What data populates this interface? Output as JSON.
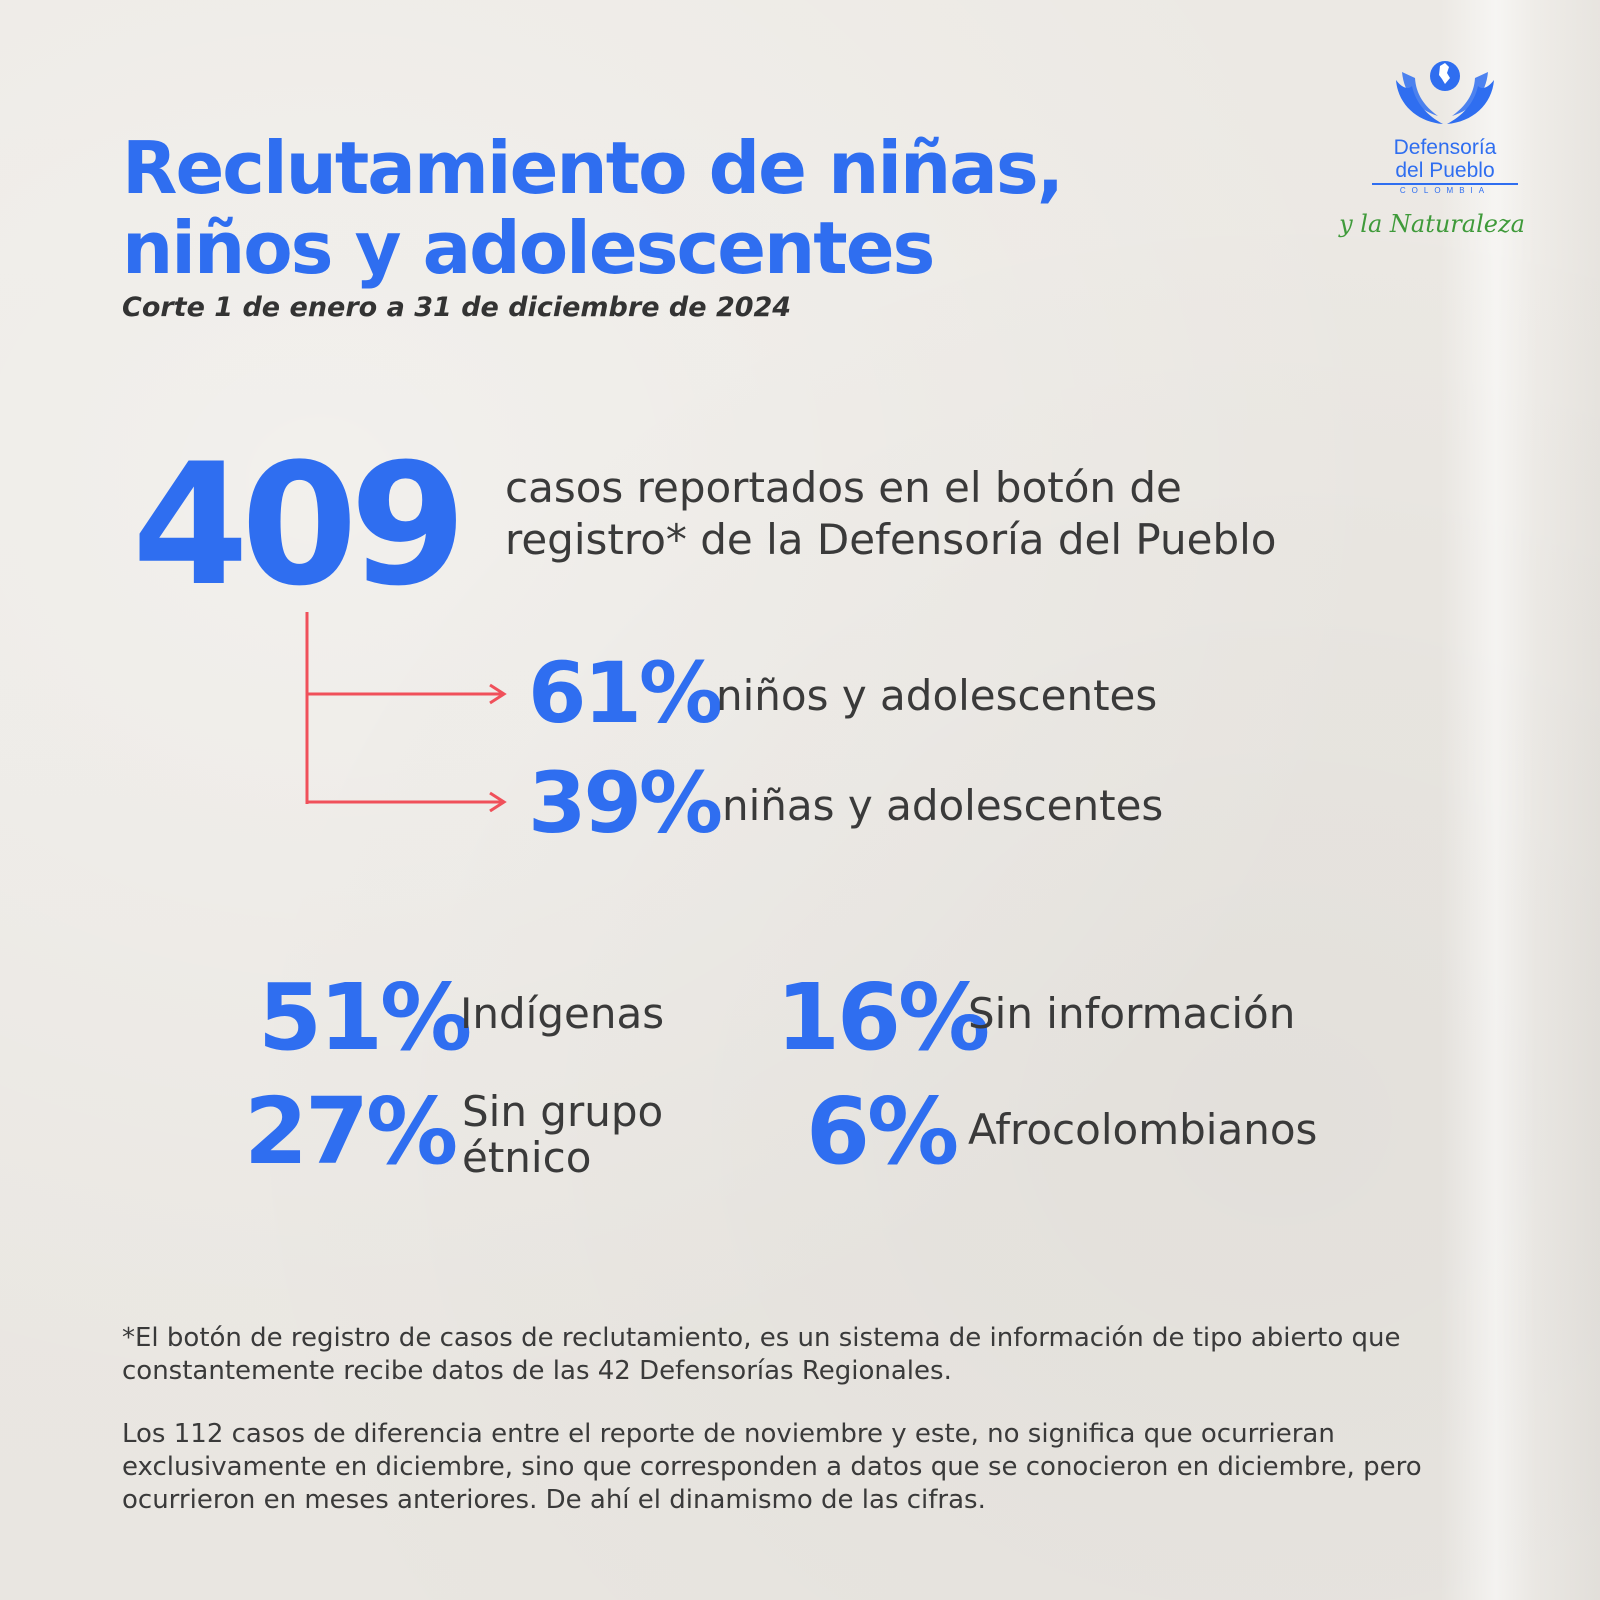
{
  "header": {
    "title_line1": "Reclutamiento de niñas,",
    "title_line2": "niños y adolescentes",
    "subtitle": "Corte 1 de enero a 31 de diciembre de 2024"
  },
  "logo": {
    "name_line1": "Defensoría",
    "name_line2": "del Pueblo",
    "country": "COLOMBIA",
    "tagline": "y la Naturaleza",
    "emblem_icon": "dove-hands-icon"
  },
  "total": {
    "value": "409",
    "description_line1": "casos reportados en el botón de",
    "description_line2": "registro* de la Defensoría del Pueblo"
  },
  "gender": {
    "items": [
      {
        "value": "61%",
        "label": "niños y adolescentes"
      },
      {
        "value": "39%",
        "label": "niñas y adolescentes"
      }
    ]
  },
  "ethnicity": {
    "items": [
      {
        "value": "51%",
        "label": "Indígenas"
      },
      {
        "value": "27%",
        "label_line1": "Sin grupo",
        "label_line2": "étnico"
      },
      {
        "value": "16%",
        "label": "Sin información"
      },
      {
        "value": "6%",
        "label": "Afrocolombianos"
      }
    ]
  },
  "footnotes": {
    "note1": "*El botón de registro de casos de reclutamiento, es un sistema de información de tipo abierto que constantemente recibe datos de las 42 Defensorías Regionales.",
    "note2": "Los 112 casos de diferencia entre el reporte de noviembre y este, no significa que ocurrieran exclusivamente en diciembre, sino que corresponden a datos que se conocieron en diciembre, pero ocurrieron en meses anteriores. De ahí el dinamismo de las cifras."
  },
  "colors": {
    "accent_blue": "#2f6ef0",
    "arrow_red": "#f0505a",
    "tagline_green": "#3f9a3a",
    "text_dark": "#3a3a3a"
  }
}
